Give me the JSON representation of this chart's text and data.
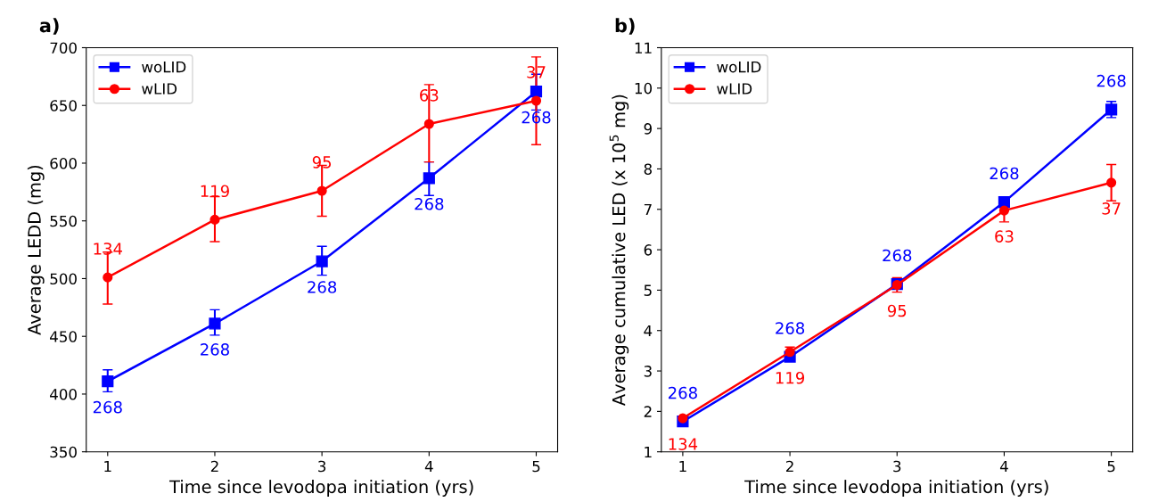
{
  "chart_data": [
    {
      "type": "line",
      "title": "a)",
      "xlabel": "Time since levodopa initiation (yrs)",
      "ylabel": "Average LEDD (mg)",
      "x": [
        1,
        2,
        3,
        4,
        5
      ],
      "xlim": [
        0.8,
        5.2
      ],
      "xticks": [
        1,
        2,
        3,
        4,
        5
      ],
      "ylim": [
        350,
        700
      ],
      "yticks": [
        350,
        400,
        450,
        500,
        550,
        600,
        650,
        700
      ],
      "grid": false,
      "legend": "top left",
      "series": [
        {
          "name": "woLID",
          "color": "#0000ff",
          "marker": "square",
          "values": [
            411,
            461,
            515,
            587,
            662
          ],
          "errors": [
            [
              402,
              421
            ],
            [
              451,
              473
            ],
            [
              503,
              528
            ],
            [
              572,
              601
            ],
            [
              646,
              677
            ]
          ]
        },
        {
          "name": "wLID",
          "color": "#ff0000",
          "marker": "circle",
          "values": [
            501,
            551,
            576,
            634,
            654
          ],
          "errors": [
            [
              478,
              523
            ],
            [
              532,
              571
            ],
            [
              554,
              598
            ],
            [
              601,
              668
            ],
            [
              616,
              692
            ]
          ]
        }
      ],
      "annotations": [
        "268",
        "268",
        "268",
        "268",
        "268",
        "134",
        "119",
        "95",
        "63",
        "37"
      ]
    },
    {
      "type": "line",
      "title": "b)",
      "xlabel": "Time since levodopa initiation (yrs)",
      "ylabel": "Average cumulative LED (x 10$^{5}$ mg)",
      "x": [
        1,
        2,
        3,
        4,
        5
      ],
      "xlim": [
        0.8,
        5.2
      ],
      "xticks": [
        1,
        2,
        3,
        4,
        5
      ],
      "ylim": [
        1,
        11
      ],
      "yticks": [
        1,
        2,
        3,
        4,
        5,
        6,
        7,
        8,
        9,
        10,
        11
      ],
      "grid": false,
      "legend": "top left",
      "series": [
        {
          "name": "woLID",
          "color": "#0000ff",
          "marker": "square",
          "values": [
            1.75,
            3.35,
            5.15,
            7.18,
            9.47
          ],
          "errors": [
            null,
            [
              3.28,
              3.42
            ],
            [
              5.05,
              5.25
            ],
            [
              7.05,
              7.31
            ],
            [
              9.27,
              9.67
            ]
          ]
        },
        {
          "name": "wLID",
          "color": "#ff0000",
          "marker": "circle",
          "values": [
            1.83,
            3.47,
            5.13,
            6.97,
            7.66
          ],
          "errors": [
            [
              1.78,
              1.88
            ],
            [
              3.35,
              3.59
            ],
            [
              4.95,
              5.31
            ],
            [
              6.69,
              6.97
            ],
            [
              7.21,
              8.11
            ]
          ]
        }
      ],
      "annotations": [
        "268",
        "268",
        "268",
        "268",
        "268",
        "134",
        "119",
        "95",
        "63",
        "37"
      ]
    }
  ]
}
